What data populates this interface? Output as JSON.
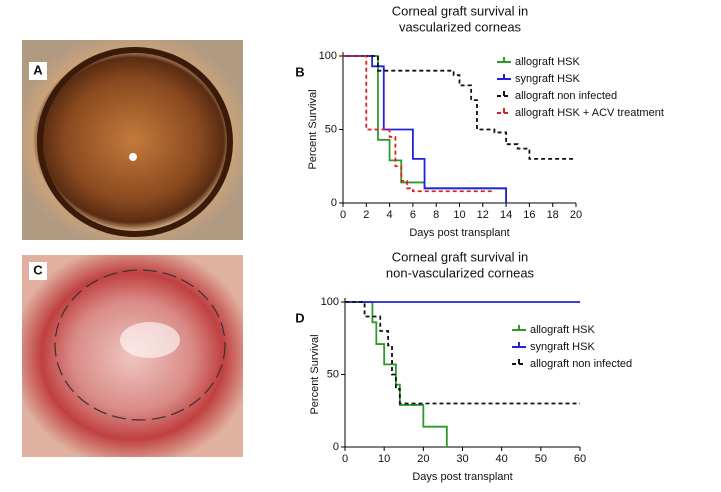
{
  "image_panels": [
    {
      "label": "A"
    },
    {
      "label": "C"
    }
  ],
  "chart_data": [
    {
      "type": "line",
      "step": true,
      "panel_label": "B",
      "title": [
        "Corneal graft survival in",
        "vascularized corneas"
      ],
      "xlabel": "Days post transplant",
      "ylabel": "Percent Survival",
      "xlim": [
        0,
        20
      ],
      "xticks": [
        0,
        2,
        4,
        6,
        8,
        10,
        12,
        14,
        16,
        18,
        20
      ],
      "ylim": [
        0,
        100
      ],
      "yticks": [
        0,
        50,
        100
      ],
      "series": [
        {
          "name": "allograft HSK",
          "color": "#2e9a2e",
          "dashed": false,
          "x": [
            0,
            3,
            4,
            5,
            7,
            14
          ],
          "values": [
            100,
            43,
            29,
            14,
            10,
            0
          ]
        },
        {
          "name": "syngraft HSK",
          "color": "#2222dd",
          "dashed": false,
          "x": [
            0,
            2.5,
            3.5,
            6,
            7,
            14
          ],
          "values": [
            100,
            93,
            50,
            30,
            10,
            0
          ]
        },
        {
          "name": "allograft non infected",
          "color": "#111111",
          "dashed": true,
          "x": [
            0,
            3,
            9.5,
            10,
            11,
            11.5,
            13,
            14,
            15,
            16,
            20
          ],
          "values": [
            100,
            90,
            87,
            80,
            70,
            50,
            48,
            40,
            37,
            30,
            30
          ]
        },
        {
          "name": "allograft HSK + ACV treatment",
          "color": "#e02020",
          "dashed": true,
          "x": [
            0,
            2,
            4,
            4.5,
            5,
            5.5,
            6,
            13
          ],
          "values": [
            100,
            50,
            45,
            25,
            15,
            10,
            8,
            8
          ]
        }
      ]
    },
    {
      "type": "line",
      "step": true,
      "panel_label": "D",
      "title": [
        "Corneal graft survival in",
        "non-vascularized corneas"
      ],
      "xlabel": "Days post transplant",
      "ylabel": "Percent Survival",
      "xlim": [
        0,
        60
      ],
      "xticks": [
        0,
        10,
        20,
        30,
        40,
        50,
        60
      ],
      "ylim": [
        0,
        100
      ],
      "yticks": [
        0,
        50,
        100
      ],
      "series": [
        {
          "name": "allograft HSK",
          "color": "#2e9a2e",
          "dashed": false,
          "x": [
            0,
            7,
            8,
            10,
            13,
            14,
            20,
            26
          ],
          "values": [
            100,
            86,
            71,
            57,
            43,
            29,
            14,
            0
          ]
        },
        {
          "name": "syngraft HSK",
          "color": "#2222dd",
          "dashed": false,
          "x": [
            0,
            60
          ],
          "values": [
            100,
            100
          ]
        },
        {
          "name": "allograft non infected",
          "color": "#111111",
          "dashed": true,
          "x": [
            0,
            5,
            9,
            11,
            12,
            13,
            14,
            60
          ],
          "values": [
            100,
            90,
            80,
            70,
            50,
            40,
            30,
            30
          ]
        }
      ]
    }
  ]
}
